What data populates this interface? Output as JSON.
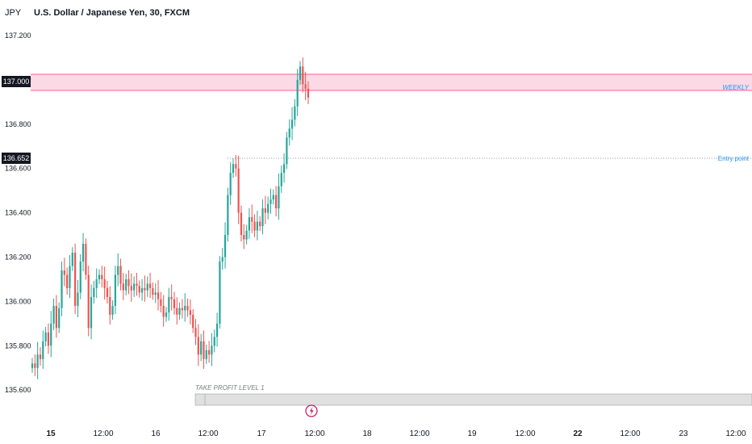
{
  "header": {
    "currency": "JPY",
    "title": "U.S. Dollar / Japanese Yen, 30, FXCM"
  },
  "annotations": {
    "zone_label": "WEEKLY",
    "entry_label": "Entry point",
    "take_profit_label": "TAKE PROFIT LEVEL 1",
    "zone_color": "#f8bbd0",
    "entry_line_color": "#9e9e9e",
    "take_profit_color": "#d1d4dc"
  },
  "price_tags": [
    {
      "label": "137.000",
      "price": 137.0
    },
    {
      "label": "136.652",
      "price": 136.652
    }
  ],
  "icons": {
    "event_marker": "lightning-bolt-icon"
  },
  "chart_data": {
    "type": "candlestick",
    "symbol": "USDJPY",
    "timeframe": "30",
    "source": "FXCM",
    "ylim": [
      135.55,
      137.27
    ],
    "yticks": [
      "137.200",
      "137.000",
      "136.800",
      "136.600",
      "136.400",
      "136.200",
      "136.000",
      "135.800",
      "135.600"
    ],
    "ytick_values": [
      137.2,
      137.0,
      136.8,
      136.6,
      136.4,
      136.2,
      136.0,
      135.8,
      135.6
    ],
    "xticks": [
      "15",
      "12:00",
      "16",
      "12:00",
      "17",
      "12:00",
      "18",
      "12:00",
      "19",
      "12:00",
      "22",
      "12:00",
      "23",
      "12:00"
    ],
    "xtick_bold": [
      true,
      false,
      false,
      false,
      false,
      false,
      false,
      false,
      false,
      false,
      true,
      false,
      false,
      false
    ],
    "colors": {
      "up": "#26a69a",
      "down": "#ef5350"
    },
    "candles_close": [
      135.72,
      135.7,
      135.76,
      135.74,
      135.82,
      135.86,
      135.8,
      135.9,
      135.98,
      135.88,
      135.97,
      136.14,
      136.12,
      136.06,
      136.16,
      136.22,
      135.98,
      136.04,
      136.18,
      136.26,
      136.12,
      135.88,
      136.02,
      136.06,
      136.1,
      136.12,
      136.1,
      136.06,
      136.02,
      135.94,
      135.98,
      136.12,
      136.16,
      136.08,
      136.05,
      136.1,
      136.07,
      136.05,
      136.08,
      136.07,
      136.04,
      136.06,
      136.05,
      136.08,
      136.06,
      136.03,
      136.04,
      136.01,
      135.98,
      135.93,
      135.95,
      136.02,
      136.01,
      135.97,
      135.94,
      135.97,
      135.96,
      135.98,
      135.96,
      135.94,
      135.88,
      135.84,
      135.76,
      135.82,
      135.74,
      135.78,
      135.76,
      135.8,
      135.84,
      135.9,
      136.18,
      136.2,
      136.3,
      136.48,
      136.58,
      136.62,
      136.6,
      136.4,
      136.3,
      136.28,
      136.32,
      136.38,
      136.36,
      136.32,
      136.36,
      136.34,
      136.42,
      136.4,
      136.44,
      136.46,
      136.48,
      136.42,
      136.52,
      136.58,
      136.62,
      136.74,
      136.78,
      136.82,
      136.88,
      137.0,
      137.06,
      136.98,
      136.96,
      136.92
    ]
  }
}
